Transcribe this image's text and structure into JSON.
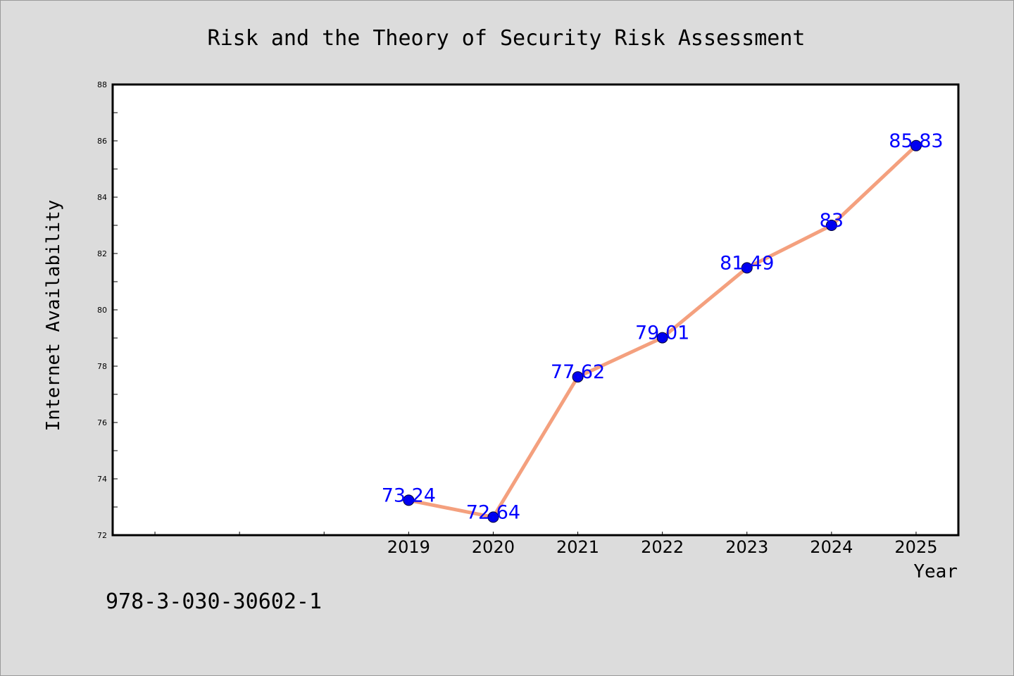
{
  "footer": {
    "isbn": "978-3-030-30602-1"
  },
  "colors": {
    "background": "#dcdcdc",
    "plot_background": "#ffffff",
    "line": "#f4a07e",
    "marker": "#0000ee",
    "data_label": "#0000ff"
  },
  "chart_data": {
    "type": "line",
    "title": "Risk and the Theory of Security Risk Assessment",
    "xlabel": "Year",
    "ylabel": "Internet Availability",
    "x": [
      2019,
      2020,
      2021,
      2022,
      2023,
      2024,
      2025
    ],
    "xlim": [
      2015.5,
      2025.5
    ],
    "ylim": [
      72,
      88
    ],
    "yticks": [
      72,
      74,
      76,
      78,
      80,
      82,
      84,
      86,
      88
    ],
    "xticks": [
      2019,
      2020,
      2021,
      2022,
      2023,
      2024,
      2025
    ],
    "grid": false,
    "legend": "none",
    "series": [
      {
        "values": [
          73.24,
          72.64,
          77.62,
          79.01,
          81.49,
          83,
          85.83
        ],
        "labels": [
          "73.24",
          "72.64",
          "77.62",
          "79.01",
          "81.49",
          "83",
          "85.83"
        ]
      }
    ]
  }
}
